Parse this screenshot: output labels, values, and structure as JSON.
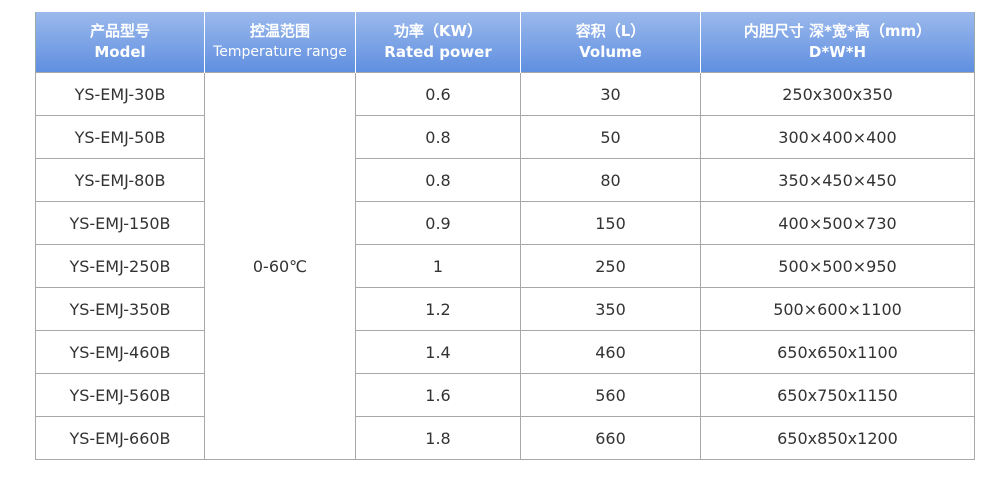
{
  "table": {
    "header": [
      [
        "产品型号",
        "Model"
      ],
      [
        "控温范围",
        "Temperature range"
      ],
      [
        "功率（KW）",
        "Rated power"
      ],
      [
        "容积（L）",
        "Volume"
      ],
      [
        "内胆尺寸 深*宽*高（mm）",
        "D*W*H"
      ]
    ],
    "temperature": "0-60℃",
    "rows": [
      [
        "YS-EMJ-30B",
        "0.6",
        "30",
        "250x300x350"
      ],
      [
        "YS-EMJ-50B",
        "0.8",
        "50",
        "300×400×400"
      ],
      [
        "YS-EMJ-80B",
        "0.8",
        "80",
        "350×450×450"
      ],
      [
        "YS-EMJ-150B",
        "0.9",
        "150",
        "400×500×730"
      ],
      [
        "YS-EMJ-250B",
        "1",
        "250",
        "500×500×950"
      ],
      [
        "YS-EMJ-350B",
        "1.2",
        "350",
        "500×600×1100"
      ],
      [
        "YS-EMJ-460B",
        "1.4",
        "460",
        "650x650x1100"
      ],
      [
        "YS-EMJ-560B",
        "1.6",
        "560",
        "650x750x1150"
      ],
      [
        "YS-EMJ-660B",
        "1.8",
        "660",
        "650x850x1200"
      ]
    ]
  }
}
